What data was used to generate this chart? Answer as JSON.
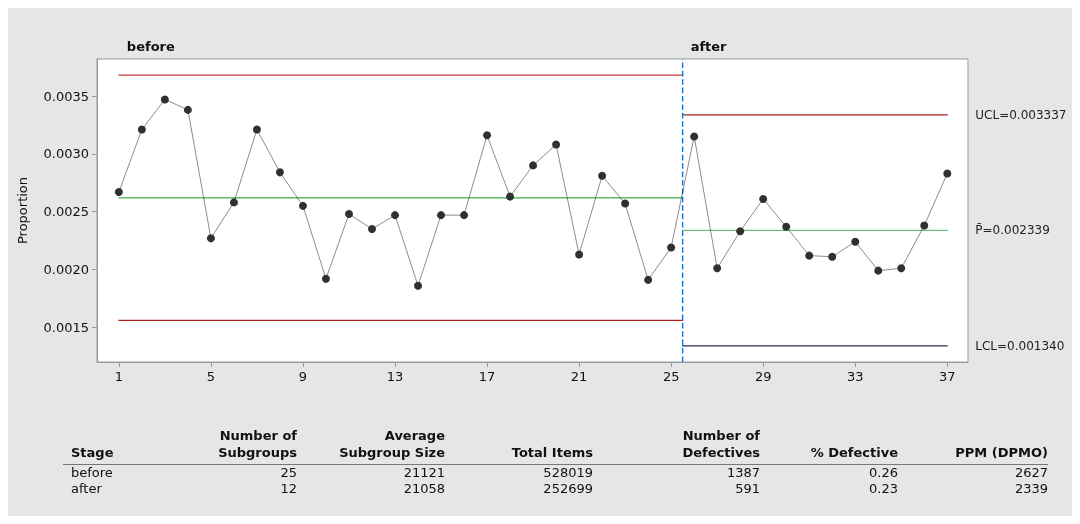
{
  "chart_data": [
    {
      "type": "line",
      "ylabel": "Proportion",
      "xlim": [
        0.05,
        37.9
      ],
      "xticks": [
        1,
        5,
        9,
        13,
        17,
        21,
        25,
        29,
        33,
        37
      ],
      "ylim": [
        0.0012,
        0.00382
      ],
      "yticks": [
        {
          "value": 0.0015,
          "label": "0.0015"
        },
        {
          "value": 0.002,
          "label": "0.0020"
        },
        {
          "value": 0.0025,
          "label": "0.0025"
        },
        {
          "value": 0.003,
          "label": "0.0030"
        },
        {
          "value": 0.0035,
          "label": "0.0035"
        }
      ],
      "grid": false,
      "marker": "circle",
      "line_style": "solid",
      "series": [
        {
          "color": "#303030",
          "x": [
            1,
            2,
            3,
            4,
            5,
            6,
            7,
            8,
            9,
            10,
            11,
            12,
            13,
            14,
            15,
            16,
            17,
            18,
            19,
            20,
            21,
            22,
            23,
            24,
            25,
            26,
            27,
            28,
            29,
            30,
            31,
            32,
            33,
            34,
            35,
            36,
            37
          ],
          "values": [
            0.00267,
            0.00321,
            0.00347,
            0.00338,
            0.00227,
            0.00258,
            0.00321,
            0.00284,
            0.00255,
            0.00192,
            0.00248,
            0.00235,
            0.00247,
            0.00186,
            0.00247,
            0.00247,
            0.00316,
            0.00263,
            0.0029,
            0.00308,
            0.00213,
            0.00281,
            0.00257,
            0.00191,
            0.00219,
            0.00315,
            0.00201,
            0.00233,
            0.00261,
            0.00237,
            0.00212,
            0.00211,
            0.00224,
            0.00199,
            0.00201,
            0.00238,
            0.00283
          ]
        },
        {
          "type": "line",
          "marker": "none",
          "color": "#c03a3a",
          "x": [
            1,
            25.5
          ],
          "values": [
            0.00368,
            0.00368
          ]
        },
        {
          "type": "line",
          "marker": "none",
          "color": "#3cae4a",
          "x": [
            1,
            25.5
          ],
          "values": [
            0.00262,
            0.00262
          ]
        },
        {
          "type": "line",
          "marker": "none",
          "color": "#b01e1e",
          "x": [
            1,
            25.5
          ],
          "values": [
            0.00156,
            0.00156
          ]
        },
        {
          "type": "line",
          "marker": "none",
          "name": "UCL=0.003337",
          "color": "#b01e1e",
          "x": [
            25.5,
            37
          ],
          "values": [
            0.003337,
            0.003337
          ]
        },
        {
          "type": "line",
          "marker": "none",
          "name": "P̄=0.002339",
          "color": "#6cc07a",
          "x": [
            25.5,
            37
          ],
          "values": [
            0.002339,
            0.002339
          ]
        },
        {
          "type": "line",
          "marker": "none",
          "name": "LCL=0.001340",
          "color": "#2a2f5a",
          "x": [
            25.5,
            37
          ],
          "values": [
            0.00134,
            0.00134
          ]
        }
      ],
      "ref_lines": [
        {
          "axis": "x",
          "value": 25.5,
          "color": "#1f6fc0",
          "line_style": "dashed"
        }
      ],
      "annotations": [
        "before",
        "after"
      ]
    },
    {
      "type": "other",
      "categories": [
        "Stage",
        "Number of\nSubgroups",
        "Average\nSubgroup Size",
        "Total Items",
        "Number of\nDefectives",
        "% Defective",
        "PPM (DPMO)"
      ],
      "cell_labels": [
        [
          "before",
          "25",
          "21121",
          "528019",
          "1387",
          "0.26",
          "2627"
        ],
        [
          "after",
          "12",
          "21058",
          "252699",
          "591",
          "0.23",
          "2339"
        ]
      ]
    }
  ]
}
